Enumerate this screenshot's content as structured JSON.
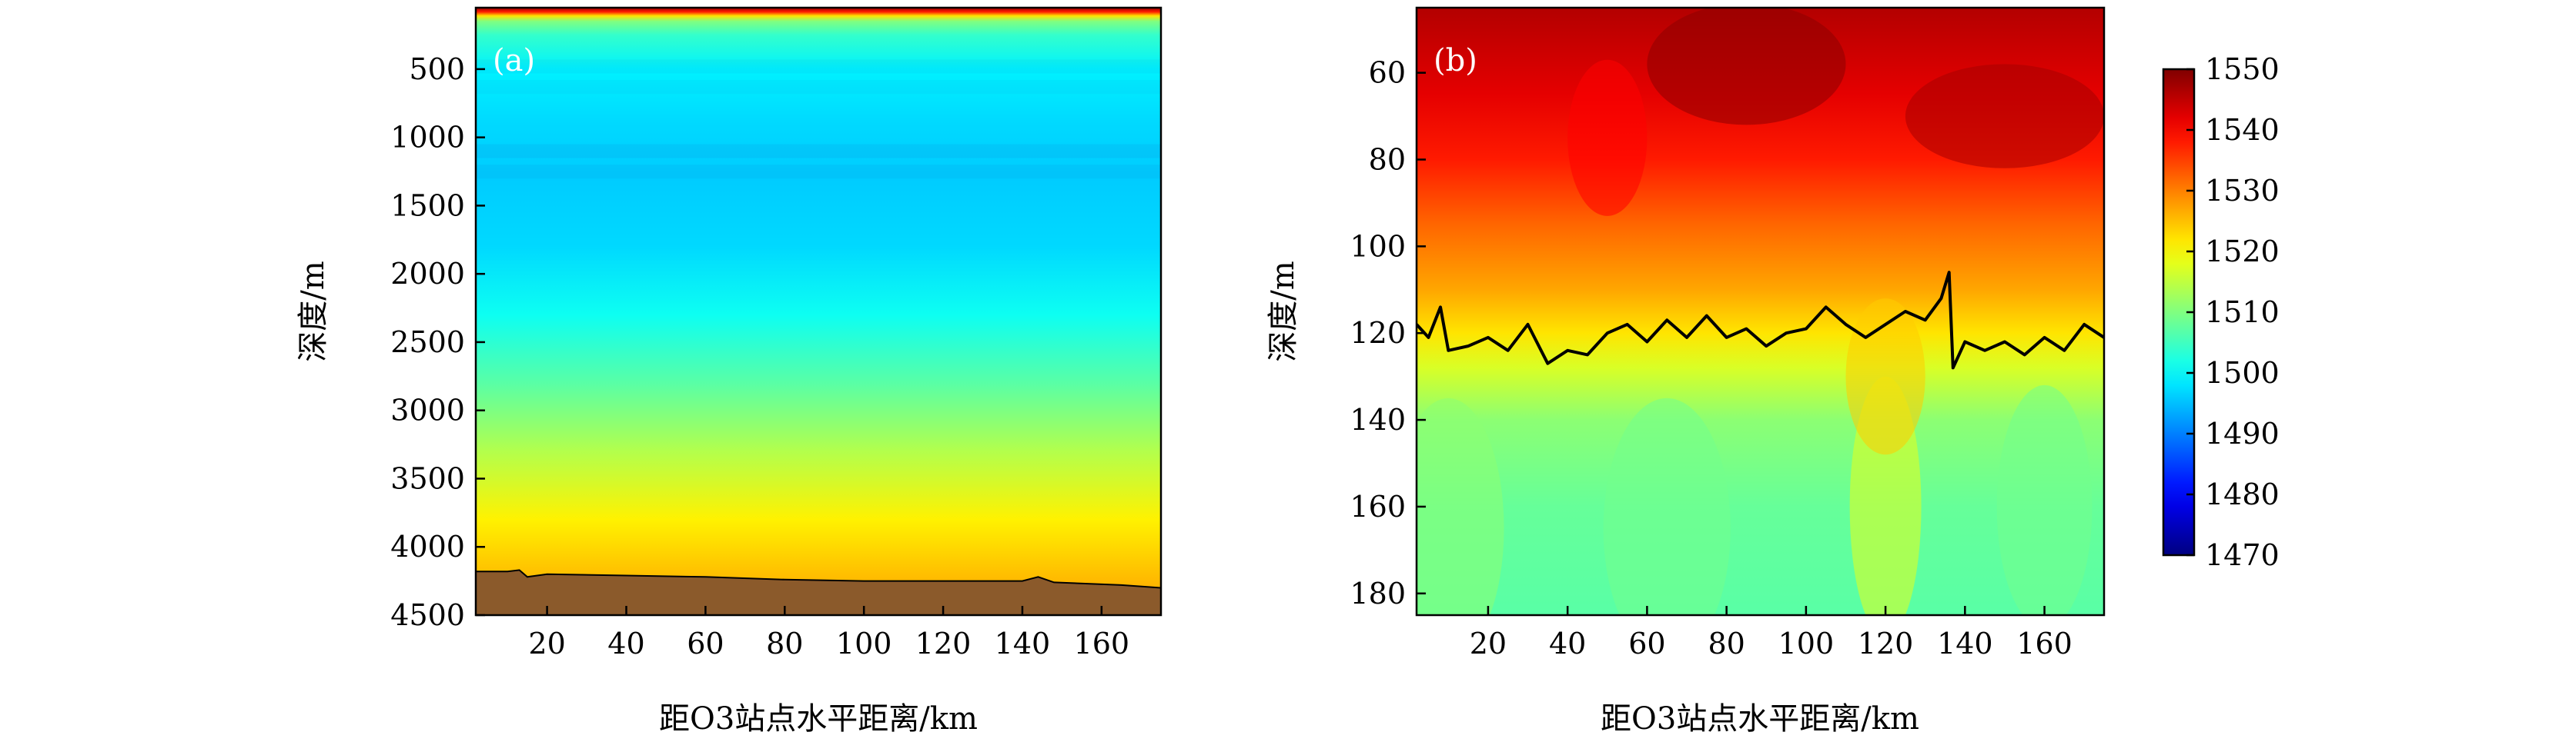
{
  "chart_data": [
    {
      "type": "heatmap",
      "panel_label": "(a)",
      "xlabel": "距O3站点水平距离/km",
      "ylabel": "深度/m",
      "xlim": [
        2,
        175
      ],
      "ylim": [
        4500,
        50
      ],
      "x_ticks": [
        "20",
        "40",
        "60",
        "80",
        "100",
        "120",
        "140",
        "160"
      ],
      "y_ticks": [
        "500",
        "1000",
        "1500",
        "2000",
        "2500",
        "3000",
        "3500",
        "4000",
        "4500"
      ],
      "x_tick_values": [
        20,
        40,
        60,
        80,
        100,
        120,
        140,
        160
      ],
      "y_tick_values": [
        500,
        1000,
        1500,
        2000,
        2500,
        3000,
        3500,
        4000,
        4500
      ],
      "sound_speed_profile": [
        {
          "depth": 50,
          "c": 1548
        },
        {
          "depth": 80,
          "c": 1538
        },
        {
          "depth": 110,
          "c": 1522
        },
        {
          "depth": 150,
          "c": 1510
        },
        {
          "depth": 250,
          "c": 1504
        },
        {
          "depth": 500,
          "c": 1499
        },
        {
          "depth": 900,
          "c": 1497
        },
        {
          "depth": 1300,
          "c": 1496
        },
        {
          "depth": 1800,
          "c": 1497
        },
        {
          "depth": 2300,
          "c": 1501
        },
        {
          "depth": 2800,
          "c": 1507
        },
        {
          "depth": 3300,
          "c": 1514
        },
        {
          "depth": 3800,
          "c": 1521
        },
        {
          "depth": 4300,
          "c": 1526
        }
      ],
      "seabed_color": "#8b5a2b",
      "seabed_depth": [
        {
          "x": 2,
          "depth": 4180
        },
        {
          "x": 10,
          "depth": 4180
        },
        {
          "x": 13,
          "depth": 4170
        },
        {
          "x": 15,
          "depth": 4220
        },
        {
          "x": 20,
          "depth": 4200
        },
        {
          "x": 40,
          "depth": 4210
        },
        {
          "x": 60,
          "depth": 4220
        },
        {
          "x": 80,
          "depth": 4240
        },
        {
          "x": 100,
          "depth": 4250
        },
        {
          "x": 120,
          "depth": 4250
        },
        {
          "x": 140,
          "depth": 4250
        },
        {
          "x": 144,
          "depth": 4220
        },
        {
          "x": 148,
          "depth": 4260
        },
        {
          "x": 165,
          "depth": 4280
        },
        {
          "x": 175,
          "depth": 4300
        }
      ]
    },
    {
      "type": "heatmap",
      "panel_label": "(b)",
      "xlabel": "距O3站点水平距离/km",
      "ylabel": "深度/m",
      "xlim": [
        2,
        175
      ],
      "ylim": [
        185,
        45
      ],
      "x_ticks": [
        "20",
        "40",
        "60",
        "80",
        "100",
        "120",
        "140",
        "160"
      ],
      "y_ticks": [
        "60",
        "80",
        "100",
        "120",
        "140",
        "160",
        "180"
      ],
      "x_tick_values": [
        20,
        40,
        60,
        80,
        100,
        120,
        140,
        160
      ],
      "y_tick_values": [
        60,
        80,
        100,
        120,
        140,
        160,
        180
      ],
      "thermocline_depth": [
        {
          "x": 2,
          "depth": 118
        },
        {
          "x": 5,
          "depth": 121
        },
        {
          "x": 8,
          "depth": 114
        },
        {
          "x": 10,
          "depth": 124
        },
        {
          "x": 15,
          "depth": 123
        },
        {
          "x": 20,
          "depth": 121
        },
        {
          "x": 25,
          "depth": 124
        },
        {
          "x": 30,
          "depth": 118
        },
        {
          "x": 35,
          "depth": 127
        },
        {
          "x": 40,
          "depth": 124
        },
        {
          "x": 45,
          "depth": 125
        },
        {
          "x": 50,
          "depth": 120
        },
        {
          "x": 55,
          "depth": 118
        },
        {
          "x": 60,
          "depth": 122
        },
        {
          "x": 65,
          "depth": 117
        },
        {
          "x": 70,
          "depth": 121
        },
        {
          "x": 75,
          "depth": 116
        },
        {
          "x": 80,
          "depth": 121
        },
        {
          "x": 85,
          "depth": 119
        },
        {
          "x": 90,
          "depth": 123
        },
        {
          "x": 95,
          "depth": 120
        },
        {
          "x": 100,
          "depth": 119
        },
        {
          "x": 105,
          "depth": 114
        },
        {
          "x": 110,
          "depth": 118
        },
        {
          "x": 115,
          "depth": 121
        },
        {
          "x": 120,
          "depth": 118
        },
        {
          "x": 125,
          "depth": 115
        },
        {
          "x": 130,
          "depth": 117
        },
        {
          "x": 134,
          "depth": 112
        },
        {
          "x": 136,
          "depth": 106
        },
        {
          "x": 137,
          "depth": 128
        },
        {
          "x": 140,
          "depth": 122
        },
        {
          "x": 145,
          "depth": 124
        },
        {
          "x": 150,
          "depth": 122
        },
        {
          "x": 155,
          "depth": 125
        },
        {
          "x": 160,
          "depth": 121
        },
        {
          "x": 165,
          "depth": 124
        },
        {
          "x": 170,
          "depth": 118
        },
        {
          "x": 175,
          "depth": 121
        }
      ]
    }
  ],
  "colorbar": {
    "min": 1470,
    "max": 1550,
    "ticks": [
      "1470",
      "1480",
      "1490",
      "1500",
      "1510",
      "1520",
      "1530",
      "1540",
      "1550"
    ],
    "tick_values": [
      1470,
      1480,
      1490,
      1500,
      1510,
      1520,
      1530,
      1540,
      1550
    ],
    "colormap": "jet"
  }
}
